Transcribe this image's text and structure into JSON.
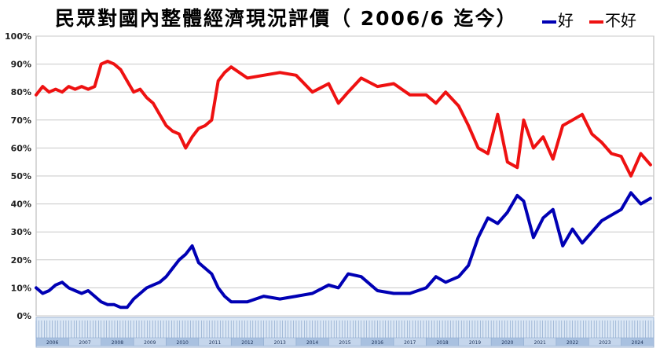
{
  "title": "民眾對國內整體經濟現況評價（ 2006/6 迄今）",
  "legend": [
    {
      "label": "好",
      "color": "#0000b4"
    },
    {
      "label": "不好",
      "color": "#ee1111"
    }
  ],
  "chart_data": {
    "type": "line",
    "yticks": [
      "100%",
      "90%",
      "80%",
      "70%",
      "60%",
      "50%",
      "40%",
      "30%",
      "20%",
      "10%",
      "0%"
    ],
    "ylim": [
      0,
      100
    ],
    "x_range": [
      2006.0,
      2025.0
    ],
    "year_labels": [
      "2006",
      "2007",
      "2008",
      "2009",
      "2010",
      "2011",
      "2012",
      "2013",
      "2014",
      "2015",
      "2016",
      "2017",
      "2018",
      "2019",
      "2020",
      "2021",
      "2022",
      "2023",
      "2024"
    ],
    "grid": true,
    "series": [
      {
        "name": "好",
        "color": "#0000b4",
        "x": [
          2006.0,
          2006.2,
          2006.4,
          2006.6,
          2006.8,
          2007.0,
          2007.2,
          2007.4,
          2007.6,
          2007.8,
          2008.0,
          2008.2,
          2008.4,
          2008.6,
          2008.8,
          2009.0,
          2009.2,
          2009.4,
          2009.6,
          2009.8,
          2010.0,
          2010.2,
          2010.4,
          2010.6,
          2010.8,
          2011.0,
          2011.2,
          2011.4,
          2011.6,
          2011.8,
          2012.0,
          2012.5,
          2013.0,
          2013.5,
          2014.0,
          2014.5,
          2015.0,
          2015.3,
          2015.6,
          2016.0,
          2016.5,
          2017.0,
          2017.5,
          2018.0,
          2018.3,
          2018.6,
          2019.0,
          2019.3,
          2019.6,
          2019.9,
          2020.2,
          2020.5,
          2020.8,
          2021.0,
          2021.3,
          2021.6,
          2021.9,
          2022.2,
          2022.5,
          2022.8,
          2023.1,
          2023.4,
          2023.7,
          2024.0,
          2024.3,
          2024.6,
          2024.9
        ],
        "values": [
          10,
          8,
          9,
          11,
          12,
          10,
          9,
          8,
          9,
          7,
          5,
          4,
          4,
          3,
          3,
          6,
          8,
          10,
          11,
          12,
          14,
          17,
          20,
          22,
          25,
          19,
          17,
          15,
          10,
          7,
          5,
          5,
          7,
          6,
          7,
          8,
          11,
          10,
          15,
          14,
          9,
          8,
          8,
          10,
          14,
          12,
          14,
          18,
          28,
          35,
          33,
          37,
          43,
          41,
          28,
          35,
          38,
          25,
          31,
          26,
          30,
          34,
          36,
          38,
          44,
          40,
          42
        ]
      },
      {
        "name": "不好",
        "color": "#ee1111",
        "x": [
          2006.0,
          2006.2,
          2006.4,
          2006.6,
          2006.8,
          2007.0,
          2007.2,
          2007.4,
          2007.6,
          2007.8,
          2008.0,
          2008.2,
          2008.4,
          2008.6,
          2008.8,
          2009.0,
          2009.2,
          2009.4,
          2009.6,
          2009.8,
          2010.0,
          2010.2,
          2010.4,
          2010.6,
          2010.8,
          2011.0,
          2011.2,
          2011.4,
          2011.6,
          2011.8,
          2012.0,
          2012.5,
          2013.0,
          2013.5,
          2014.0,
          2014.5,
          2015.0,
          2015.3,
          2015.6,
          2016.0,
          2016.5,
          2017.0,
          2017.5,
          2018.0,
          2018.3,
          2018.6,
          2019.0,
          2019.3,
          2019.6,
          2019.9,
          2020.2,
          2020.5,
          2020.8,
          2021.0,
          2021.3,
          2021.6,
          2021.9,
          2022.2,
          2022.5,
          2022.8,
          2023.1,
          2023.4,
          2023.7,
          2024.0,
          2024.3,
          2024.6,
          2024.9
        ],
        "values": [
          79,
          82,
          80,
          81,
          80,
          82,
          81,
          82,
          81,
          82,
          90,
          91,
          90,
          88,
          84,
          80,
          81,
          78,
          76,
          72,
          68,
          66,
          65,
          60,
          64,
          67,
          68,
          70,
          84,
          87,
          89,
          85,
          86,
          87,
          86,
          80,
          83,
          76,
          80,
          85,
          82,
          83,
          79,
          79,
          76,
          80,
          75,
          68,
          60,
          58,
          72,
          55,
          53,
          70,
          60,
          64,
          56,
          68,
          70,
          72,
          65,
          62,
          58,
          57,
          50,
          58,
          54
        ]
      }
    ]
  }
}
